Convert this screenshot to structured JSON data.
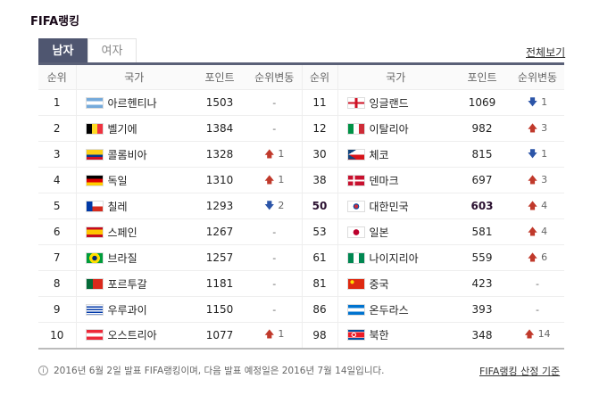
{
  "title": "FIFA랭킹",
  "tabs": [
    {
      "label": "남자",
      "active": true
    },
    {
      "label": "여자",
      "active": false
    }
  ],
  "view_all": "전체보기",
  "headers": {
    "rank": "순위",
    "country": "국가",
    "points": "포인트",
    "change": "순위변동"
  },
  "colors": {
    "tab_active": "#4f5670",
    "up": "#c0392b",
    "down": "#2c55a8"
  },
  "left_rows": [
    {
      "rank": "1",
      "country": "아르헨티나",
      "flag": "argentina-flag-icon",
      "points": "1503",
      "dir": "none",
      "change": "-"
    },
    {
      "rank": "2",
      "country": "벨기에",
      "flag": "belgium-flag-icon",
      "points": "1384",
      "dir": "none",
      "change": "-"
    },
    {
      "rank": "3",
      "country": "콜롬비아",
      "flag": "colombia-flag-icon",
      "points": "1328",
      "dir": "up",
      "change": "1"
    },
    {
      "rank": "4",
      "country": "독일",
      "flag": "germany-flag-icon",
      "points": "1310",
      "dir": "up",
      "change": "1"
    },
    {
      "rank": "5",
      "country": "칠레",
      "flag": "chile-flag-icon",
      "points": "1293",
      "dir": "down",
      "change": "2"
    },
    {
      "rank": "6",
      "country": "스페인",
      "flag": "spain-flag-icon",
      "points": "1267",
      "dir": "none",
      "change": "-"
    },
    {
      "rank": "7",
      "country": "브라질",
      "flag": "brazil-flag-icon",
      "points": "1257",
      "dir": "none",
      "change": "-"
    },
    {
      "rank": "8",
      "country": "포르투갈",
      "flag": "portugal-flag-icon",
      "points": "1181",
      "dir": "none",
      "change": "-"
    },
    {
      "rank": "9",
      "country": "우루과이",
      "flag": "uruguay-flag-icon",
      "points": "1150",
      "dir": "none",
      "change": "-"
    },
    {
      "rank": "10",
      "country": "오스트리아",
      "flag": "austria-flag-icon",
      "points": "1077",
      "dir": "up",
      "change": "1"
    }
  ],
  "right_rows": [
    {
      "rank": "11",
      "country": "잉글랜드",
      "flag": "england-flag-icon",
      "points": "1069",
      "dir": "down",
      "change": "1"
    },
    {
      "rank": "12",
      "country": "이탈리아",
      "flag": "italy-flag-icon",
      "points": "982",
      "dir": "up",
      "change": "3"
    },
    {
      "rank": "30",
      "country": "체코",
      "flag": "czech-flag-icon",
      "points": "815",
      "dir": "down",
      "change": "1"
    },
    {
      "rank": "38",
      "country": "덴마크",
      "flag": "denmark-flag-icon",
      "points": "697",
      "dir": "up",
      "change": "3"
    },
    {
      "rank": "50",
      "country": "대한민국",
      "flag": "korea-flag-icon",
      "points": "603",
      "dir": "up",
      "change": "4",
      "highlight": true
    },
    {
      "rank": "53",
      "country": "일본",
      "flag": "japan-flag-icon",
      "points": "581",
      "dir": "up",
      "change": "4"
    },
    {
      "rank": "61",
      "country": "나이지리아",
      "flag": "nigeria-flag-icon",
      "points": "559",
      "dir": "up",
      "change": "6"
    },
    {
      "rank": "81",
      "country": "중국",
      "flag": "china-flag-icon",
      "points": "423",
      "dir": "none",
      "change": "-"
    },
    {
      "rank": "86",
      "country": "온두라스",
      "flag": "honduras-flag-icon",
      "points": "393",
      "dir": "none",
      "change": "-"
    },
    {
      "rank": "98",
      "country": "북한",
      "flag": "north-korea-flag-icon",
      "points": "348",
      "dir": "up",
      "change": "14"
    }
  ],
  "footer": {
    "note": "2016년 6월 2일 발표 FIFA랭킹이며, 다음 발표 예정일은 2016년 7월 14일입니다.",
    "criteria_link": "FIFA랭킹 산정 기준"
  }
}
